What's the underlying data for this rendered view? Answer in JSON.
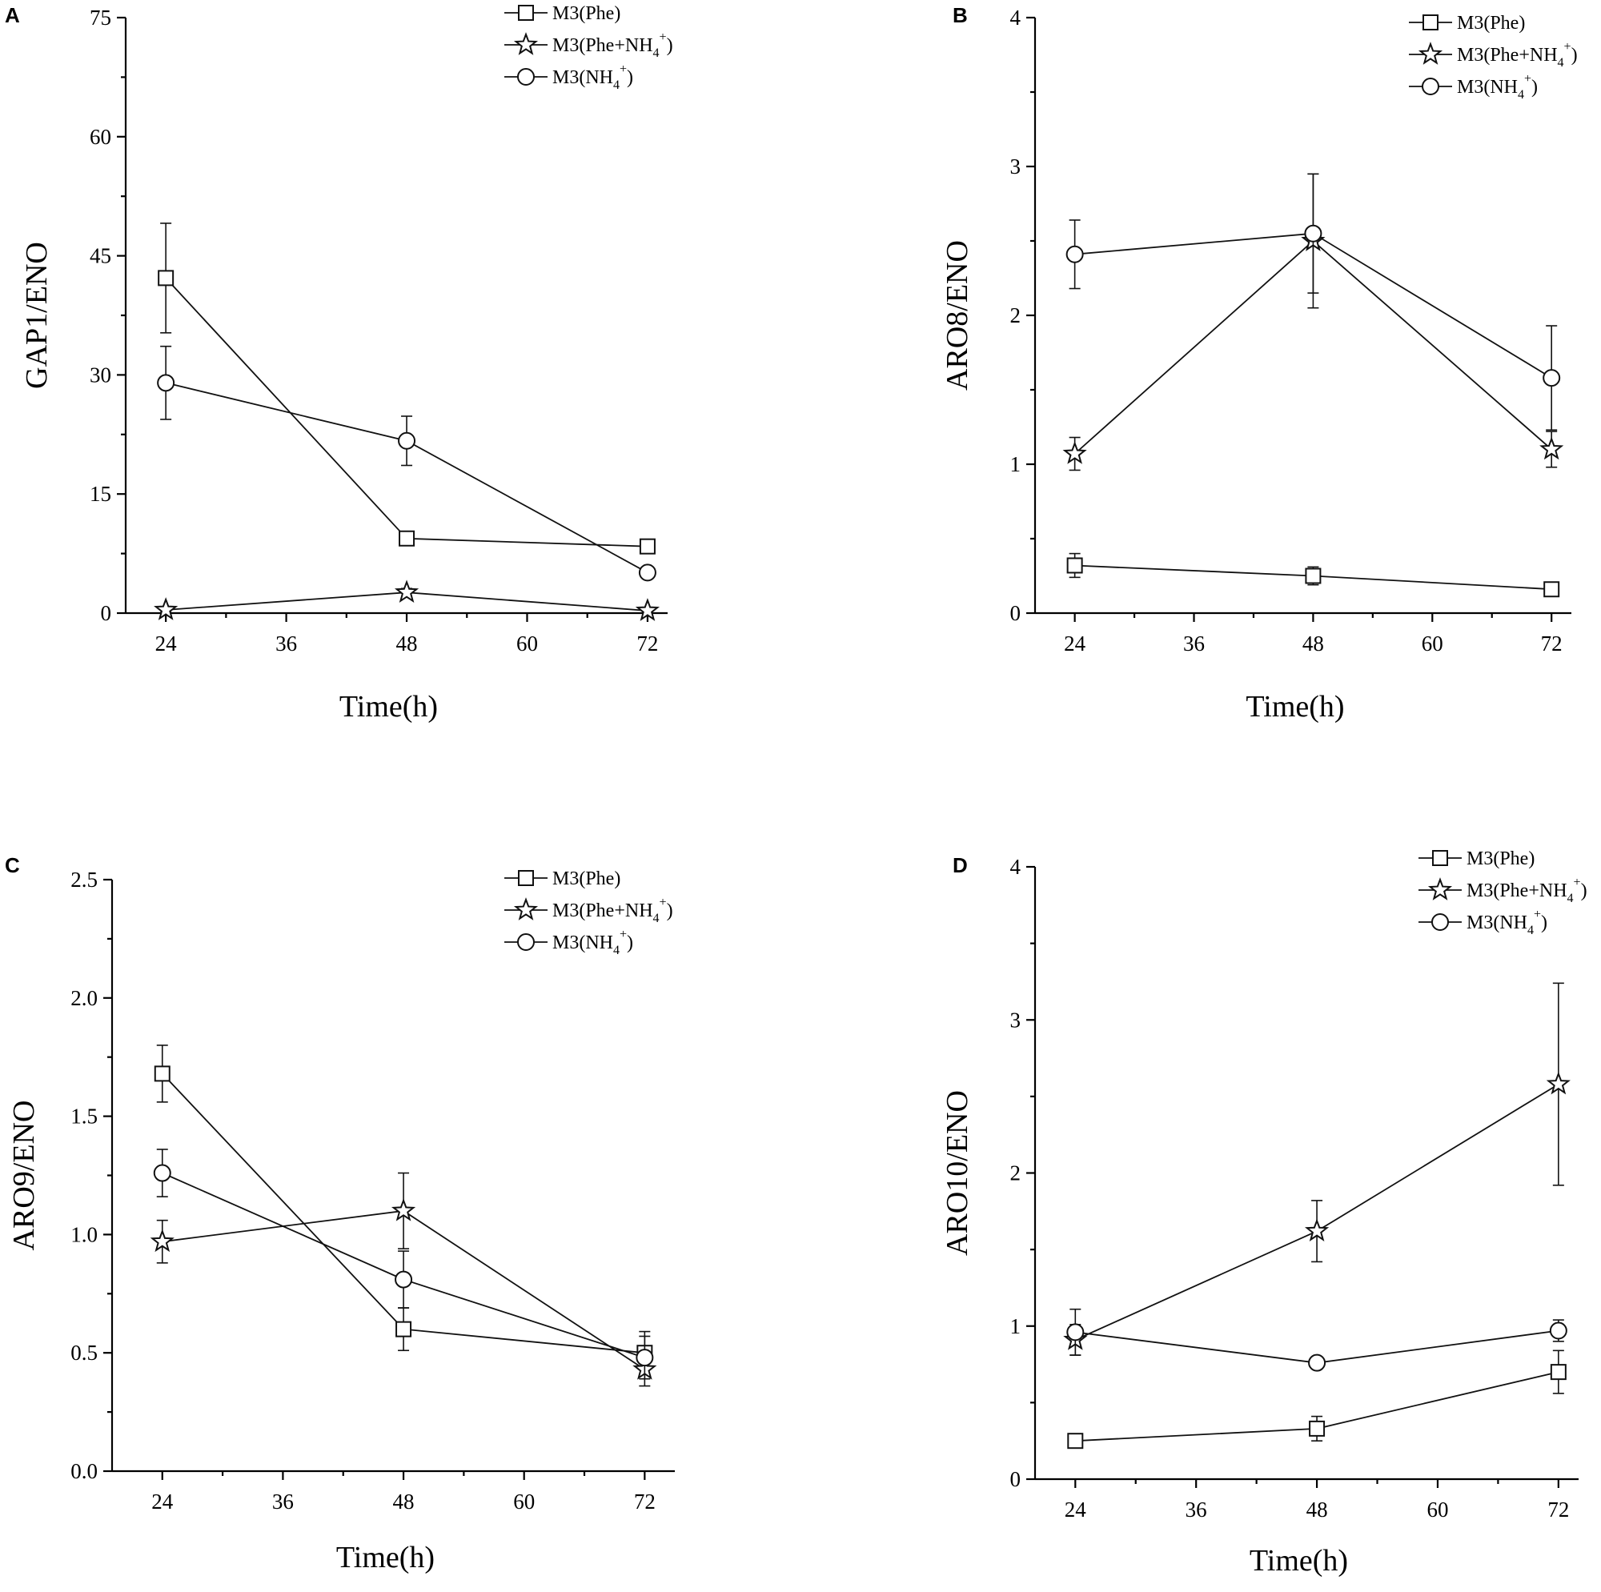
{
  "chart_data": [
    {
      "panel": "A",
      "type": "line",
      "ylabel": "GAP1/ENO",
      "xlabel": "Time(h)",
      "x": [
        24,
        48,
        72
      ],
      "xticks": [
        24,
        36,
        48,
        60,
        72
      ],
      "xtick_labels": [
        "24",
        "36",
        "48",
        "60",
        "72"
      ],
      "xlim": [
        20,
        74
      ],
      "ylim": [
        0,
        75
      ],
      "yticks": [
        0,
        15,
        30,
        45,
        60,
        75
      ],
      "ytick_labels": [
        "0",
        "15",
        "30",
        "45",
        "60",
        "75"
      ],
      "series": [
        {
          "name": "M3(Phe)",
          "label_main": "M3(Phe)",
          "label_rest": "",
          "marker": "square",
          "values": [
            42.2,
            9.4,
            8.4
          ],
          "errors": [
            6.9,
            0.9,
            0.8
          ]
        },
        {
          "name": "M3(Phe+NH4+)",
          "label_main": "M3(Phe+NH",
          "label_rest": ")",
          "marker": "star",
          "values": [
            0.4,
            2.6,
            0.3
          ],
          "errors": [
            0.3,
            0.5,
            0.2
          ]
        },
        {
          "name": "M3(NH4+)",
          "label_main": "M3(NH",
          "label_rest": ")",
          "marker": "circle",
          "values": [
            29.0,
            21.7,
            5.1
          ],
          "errors": [
            4.6,
            3.1,
            0.7
          ]
        }
      ]
    },
    {
      "panel": "B",
      "type": "line",
      "ylabel": "ARO8/ENO",
      "xlabel": "Time(h)",
      "x": [
        24,
        48,
        72
      ],
      "xticks": [
        24,
        36,
        48,
        60,
        72
      ],
      "xtick_labels": [
        "24",
        "36",
        "48",
        "60",
        "72"
      ],
      "xlim": [
        20,
        74
      ],
      "ylim": [
        0,
        4
      ],
      "yticks": [
        0,
        1,
        2,
        3,
        4
      ],
      "ytick_labels": [
        "0",
        "1",
        "2",
        "3",
        "4"
      ],
      "series": [
        {
          "name": "M3(Phe)",
          "label_main": "M3(Phe)",
          "label_rest": "",
          "marker": "square",
          "values": [
            0.32,
            0.25,
            0.16
          ],
          "errors": [
            0.08,
            0.06,
            0.04
          ]
        },
        {
          "name": "M3(Phe+NH4+)",
          "label_main": "M3(Phe+NH",
          "label_rest": ")",
          "marker": "star",
          "values": [
            1.07,
            2.5,
            1.1
          ],
          "errors": [
            0.11,
            0.45,
            0.12
          ]
        },
        {
          "name": "M3(NH4+)",
          "label_main": "M3(NH",
          "label_rest": ")",
          "marker": "circle",
          "values": [
            2.41,
            2.55,
            1.58
          ],
          "errors": [
            0.23,
            0.4,
            0.35
          ]
        }
      ]
    },
    {
      "panel": "C",
      "type": "line",
      "ylabel": "ARO9/ENO",
      "xlabel": "Time(h)",
      "x": [
        24,
        48,
        72
      ],
      "xticks": [
        24,
        36,
        48,
        60,
        72
      ],
      "xtick_labels": [
        "24",
        "36",
        "48",
        "60",
        "72"
      ],
      "xlim": [
        19,
        75
      ],
      "ylim": [
        0,
        2.5
      ],
      "yticks": [
        0,
        0.5,
        1.0,
        1.5,
        2.0,
        2.5
      ],
      "ytick_labels": [
        "0.0",
        "0.5",
        "1.0",
        "1.5",
        "2.0",
        "2.5"
      ],
      "series": [
        {
          "name": "M3(Phe)",
          "label_main": "M3(Phe)",
          "label_rest": "",
          "marker": "square",
          "values": [
            1.68,
            0.6,
            0.5
          ],
          "errors": [
            0.12,
            0.09,
            0.09
          ]
        },
        {
          "name": "M3(Phe+NH4+)",
          "label_main": "M3(Phe+NH",
          "label_rest": ")",
          "marker": "star",
          "values": [
            0.97,
            1.1,
            0.43
          ],
          "errors": [
            0.09,
            0.16,
            0.07
          ]
        },
        {
          "name": "M3(NH4+)",
          "label_main": "M3(NH",
          "label_rest": ")",
          "marker": "circle",
          "values": [
            1.26,
            0.81,
            0.48
          ],
          "errors": [
            0.1,
            0.12,
            0.09
          ]
        }
      ]
    },
    {
      "panel": "D",
      "type": "line",
      "ylabel": "ARO10/ENO",
      "xlabel": "Time(h)",
      "x": [
        24,
        48,
        72
      ],
      "xticks": [
        24,
        36,
        48,
        60,
        72
      ],
      "xtick_labels": [
        "24",
        "36",
        "48",
        "60",
        "72"
      ],
      "xlim": [
        20,
        74
      ],
      "ylim": [
        0,
        4
      ],
      "yticks": [
        0,
        1,
        2,
        3,
        4
      ],
      "ytick_labels": [
        "0",
        "1",
        "2",
        "3",
        "4"
      ],
      "series": [
        {
          "name": "M3(Phe)",
          "label_main": "M3(Phe)",
          "label_rest": "",
          "marker": "square",
          "values": [
            0.25,
            0.33,
            0.7
          ],
          "errors": [
            0.04,
            0.08,
            0.14
          ]
        },
        {
          "name": "M3(Phe+NH4+)",
          "label_main": "M3(Phe+NH",
          "label_rest": ")",
          "marker": "star",
          "values": [
            0.91,
            1.62,
            2.58
          ],
          "errors": [
            0.1,
            0.2,
            0.66
          ]
        },
        {
          "name": "M3(NH4+)",
          "label_main": "M3(NH",
          "label_rest": ")",
          "marker": "circle",
          "values": [
            0.96,
            0.76,
            0.97
          ],
          "errors": [
            0.15,
            0.04,
            0.07
          ]
        }
      ]
    }
  ]
}
